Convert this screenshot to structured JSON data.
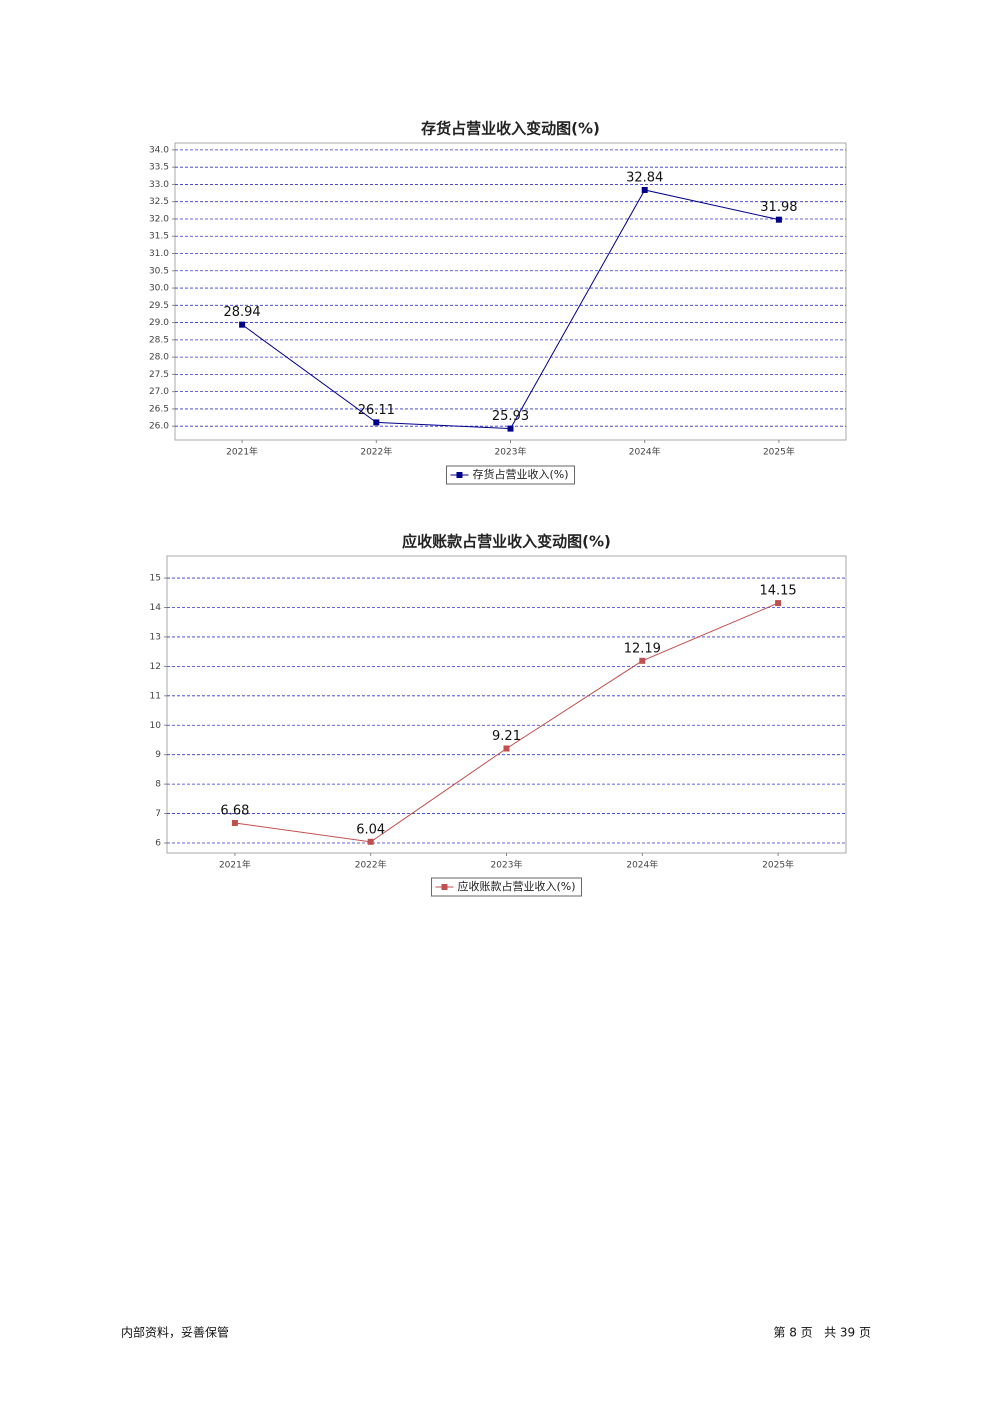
{
  "chart_data": [
    {
      "type": "line",
      "title": "存货占营业收入变动图(%)",
      "categories": [
        "2021年",
        "2022年",
        "2023年",
        "2024年",
        "2025年"
      ],
      "series": [
        {
          "name": "存货占营业收入(%)",
          "color": "#00008b",
          "values": [
            28.94,
            26.11,
            25.93,
            32.84,
            31.98
          ]
        }
      ],
      "ylim": [
        25.6,
        34.2
      ],
      "yticks": [
        {
          "value": 26,
          "label": "26.0"
        },
        26.5,
        {
          "value": 27,
          "label": "27.0"
        },
        27.5,
        {
          "value": 28,
          "label": "28.0"
        },
        28.5,
        {
          "value": 29,
          "label": "29.0"
        },
        29.5,
        {
          "value": 30,
          "label": "30.0"
        },
        30.5,
        {
          "value": 31,
          "label": "31.0"
        },
        31.5,
        {
          "value": 32,
          "label": "32.0"
        },
        32.5,
        {
          "value": 33,
          "label": "33.0"
        },
        33.5,
        {
          "value": 34,
          "label": "34.0"
        }
      ],
      "grid": true
    },
    {
      "type": "line",
      "title": "应收账款占营业收入变动图(%)",
      "categories": [
        "2021年",
        "2022年",
        "2023年",
        "2024年",
        "2025年"
      ],
      "series": [
        {
          "name": "应收账款占营业收入(%)",
          "color": "#c0504d",
          "values": [
            6.68,
            6.04,
            9.21,
            12.19,
            14.15
          ]
        }
      ],
      "ylim": [
        5.66,
        15.75
      ],
      "yticks": [
        6,
        7,
        8,
        9,
        10,
        11,
        12,
        13,
        14,
        15
      ],
      "grid": true
    }
  ],
  "footer": {
    "left": "内部资料，妥善保管",
    "right": "第 8 页   共 39 页"
  }
}
